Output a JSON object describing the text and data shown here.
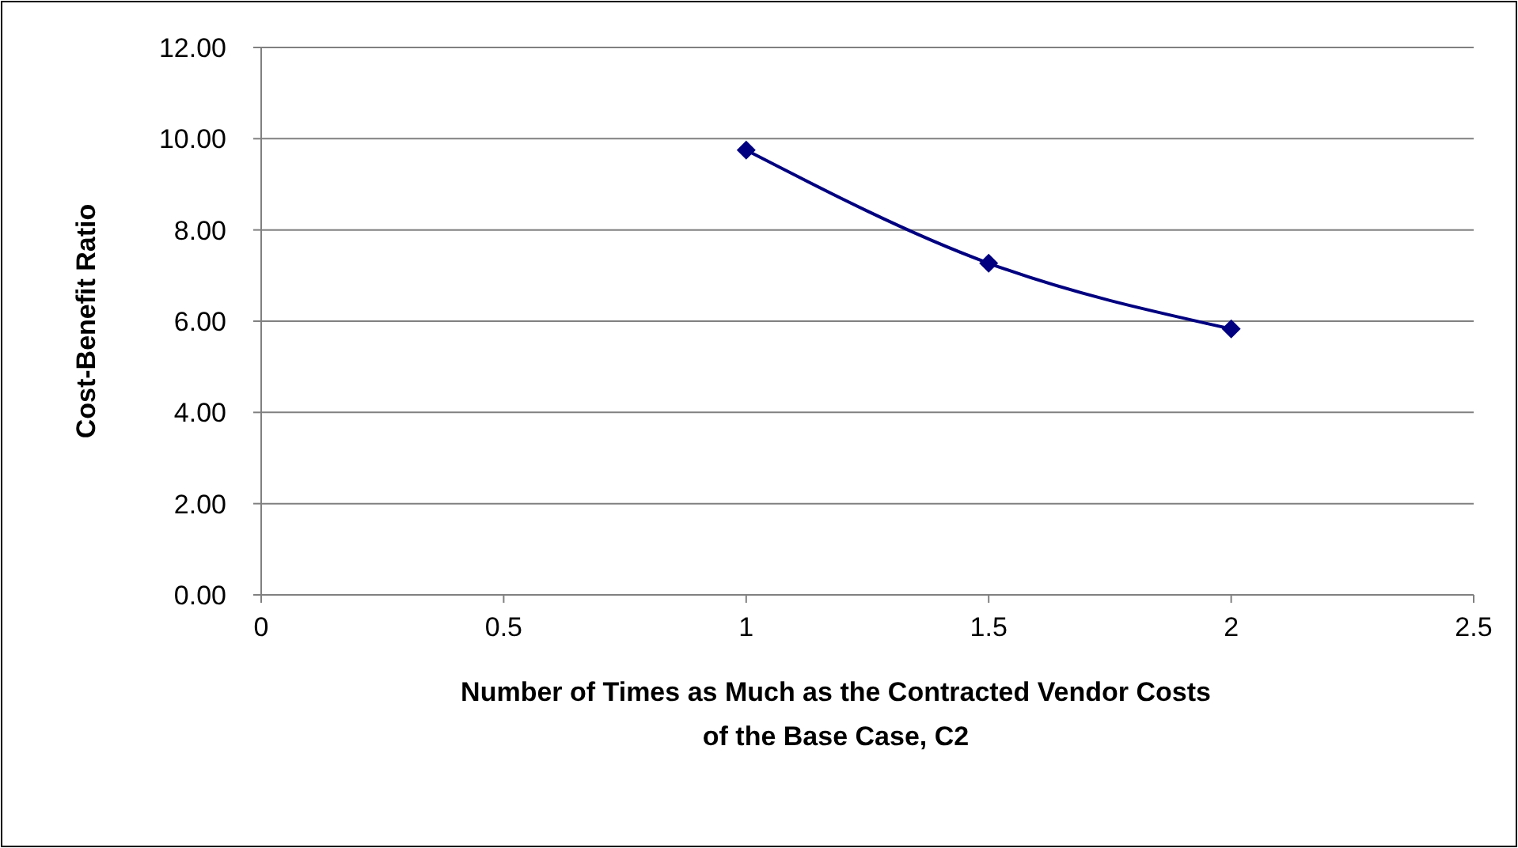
{
  "chart_data": {
    "type": "line",
    "xlabel": "Number of Times as Much as the Contracted Vendor Costs of the Base Case, C2",
    "ylabel": "Cost-Benefit Ratio",
    "x": [
      1,
      1.5,
      2
    ],
    "series": [
      {
        "color": "#000080",
        "values": [
          9.75,
          7.27,
          5.83
        ]
      }
    ],
    "xlim": [
      0,
      2.5
    ],
    "xticks": [
      0,
      0.5,
      1,
      1.5,
      2,
      2.5
    ],
    "ylim": [
      0,
      12
    ],
    "yticks": [
      {
        "value": 0,
        "label": "0.00"
      },
      {
        "value": 2,
        "label": "2.00"
      },
      {
        "value": 4,
        "label": "4.00"
      },
      {
        "value": 6,
        "label": "6.00"
      },
      {
        "value": 8,
        "label": "8.00"
      },
      {
        "value": 10,
        "label": "10.00"
      },
      {
        "value": 12,
        "label": "12.00"
      }
    ],
    "grid": "y",
    "marker": "diamond",
    "line_style": "solid"
  }
}
